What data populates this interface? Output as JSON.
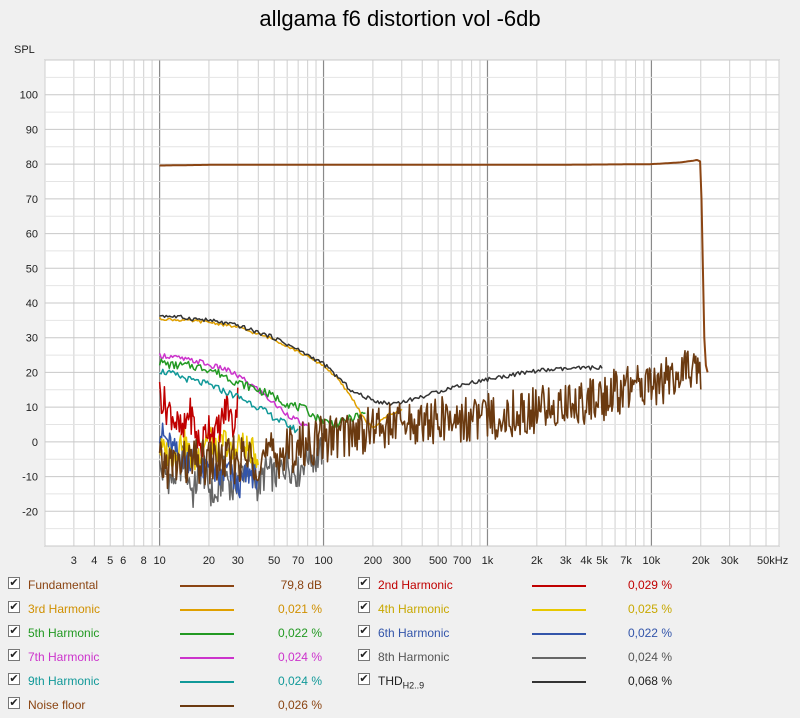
{
  "chart_data": {
    "type": "line",
    "title": "allgama f6 distortion vol -6db",
    "ylabel": "SPL",
    "xlabel": "",
    "x_scale": "log",
    "x_unit": "kHz",
    "xlim": [
      2,
      60000
    ],
    "ylim": [
      -30,
      110
    ],
    "y_ticks": [
      100,
      90,
      80,
      70,
      60,
      50,
      40,
      30,
      20,
      10,
      0,
      -10,
      -20
    ],
    "x_tick_labels": [
      {
        "value": 3,
        "label": "3"
      },
      {
        "value": 4,
        "label": "4"
      },
      {
        "value": 5,
        "label": "5"
      },
      {
        "value": 6,
        "label": "6"
      },
      {
        "value": 8,
        "label": "8"
      },
      {
        "value": 10,
        "label": "10"
      },
      {
        "value": 20,
        "label": "20"
      },
      {
        "value": 30,
        "label": "30"
      },
      {
        "value": 50,
        "label": "50"
      },
      {
        "value": 70,
        "label": "70"
      },
      {
        "value": 100,
        "label": "100"
      },
      {
        "value": 200,
        "label": "200"
      },
      {
        "value": 300,
        "label": "300"
      },
      {
        "value": 500,
        "label": "500"
      },
      {
        "value": 700,
        "label": "700"
      },
      {
        "value": 1000,
        "label": "1k"
      },
      {
        "value": 2000,
        "label": "2k"
      },
      {
        "value": 3000,
        "label": "3k"
      },
      {
        "value": 4000,
        "label": "4k"
      },
      {
        "value": 5000,
        "label": "5k"
      },
      {
        "value": 7000,
        "label": "7k"
      },
      {
        "value": 10000,
        "label": "10k"
      },
      {
        "value": 20000,
        "label": "20k"
      },
      {
        "value": 30000,
        "label": "30k"
      },
      {
        "value": 50000,
        "label": "50kHz"
      }
    ],
    "grid": true,
    "legend_placement": "bottom",
    "series": [
      {
        "name": "Fundamental",
        "color": "#8b4513",
        "legend_value": "79,8 dB",
        "x": [
          10,
          20,
          50,
          100,
          200,
          500,
          1000,
          2000,
          5000,
          10000,
          15000,
          18000,
          19000,
          19800,
          20200,
          20600,
          21000,
          21500,
          22000
        ],
        "y": [
          79.6,
          79.8,
          79.8,
          79.8,
          79.8,
          79.8,
          79.8,
          79.8,
          79.9,
          80.0,
          80.5,
          81.0,
          81.2,
          80.8,
          70,
          50,
          30,
          22,
          20
        ]
      },
      {
        "name": "2nd Harmonic",
        "color": "#c00000",
        "legend_value": "0,029 %",
        "x": [
          10,
          11,
          12,
          13,
          14,
          15,
          16,
          17,
          18,
          19,
          20,
          22,
          24,
          26,
          28,
          30
        ],
        "y": [
          14,
          10,
          8,
          4,
          2,
          9,
          6,
          1,
          -2,
          3,
          5,
          2,
          6,
          11,
          4,
          12
        ]
      },
      {
        "name": "3rd Harmonic",
        "color": "#e0a000",
        "legend_value": "0,021 %",
        "x": [
          10,
          20,
          30,
          50,
          70,
          100,
          120,
          150,
          180,
          200,
          250,
          300
        ],
        "y": [
          35.5,
          34.5,
          33,
          29.5,
          26,
          22,
          18.5,
          12.5,
          6,
          4,
          8,
          9
        ]
      },
      {
        "name": "4th Harmonic",
        "color": "#e8c800",
        "legend_value": "0,025 %",
        "x": [
          10,
          12,
          14,
          16,
          18,
          20,
          22,
          25,
          28,
          30,
          35,
          40
        ],
        "y": [
          -2,
          -4,
          1,
          -6,
          -2,
          3,
          -3,
          1,
          -5,
          0,
          -2,
          -4
        ]
      },
      {
        "name": "5th Harmonic",
        "color": "#229922",
        "legend_value": "0,022 %",
        "x": [
          10,
          12,
          15,
          20,
          25,
          30,
          35,
          40,
          50,
          60,
          70,
          80,
          90,
          100,
          120,
          150,
          180
        ],
        "y": [
          23,
          22,
          22,
          21,
          19,
          17,
          16,
          15,
          13,
          11,
          10,
          9,
          7,
          6,
          5,
          7,
          8
        ]
      },
      {
        "name": "6th Harmonic",
        "color": "#3355aa",
        "legend_value": "0,022 %",
        "x": [
          10,
          12,
          14,
          16,
          18,
          20,
          23,
          26,
          30,
          35,
          40
        ],
        "y": [
          3,
          -2,
          -6,
          -4,
          -9,
          -6,
          -11,
          -8,
          -13,
          -9,
          -10
        ]
      },
      {
        "name": "7th Harmonic",
        "color": "#cc33cc",
        "legend_value": "0,024 %",
        "x": [
          10,
          12,
          15,
          18,
          20,
          25,
          30,
          35,
          40,
          50,
          60,
          70,
          80
        ],
        "y": [
          25,
          24.5,
          23.5,
          23,
          22,
          21,
          19,
          17,
          15,
          11,
          8,
          6,
          4
        ]
      },
      {
        "name": "8th Harmonic",
        "color": "#666666",
        "legend_value": "0,024 %",
        "x": [
          10,
          12,
          14,
          16,
          18,
          20,
          22,
          25,
          28,
          30,
          35,
          40,
          45,
          50,
          60,
          70,
          80,
          90,
          100
        ],
        "y": [
          -8,
          -11,
          -5,
          -15,
          -7,
          -13,
          -17,
          -8,
          -14,
          -10,
          -6,
          -13,
          -8,
          -10,
          -6,
          -9,
          -3,
          -5,
          -2
        ]
      },
      {
        "name": "9th Harmonic",
        "color": "#119999",
        "legend_value": "0,024 %",
        "x": [
          10,
          12,
          15,
          18,
          20,
          25,
          30,
          35,
          40,
          50,
          60,
          70
        ],
        "y": [
          20.5,
          19.5,
          18,
          17,
          16.5,
          14.5,
          13,
          11.5,
          10,
          7,
          5,
          3
        ]
      },
      {
        "name": "THD H2..9",
        "color": "#333333",
        "legend_value": "0,068 %",
        "x": [
          10,
          20,
          30,
          50,
          70,
          100,
          120,
          150,
          200,
          250,
          300,
          400,
          500,
          700,
          1000,
          1500,
          2000,
          3000,
          5000
        ],
        "y": [
          36.5,
          35,
          33.5,
          30,
          26.5,
          22.5,
          19,
          14.5,
          12,
          11,
          11.5,
          13,
          14.5,
          16.5,
          18,
          19.5,
          20.5,
          21,
          21.5
        ]
      },
      {
        "name": "Noise floor",
        "color": "#6b3a10",
        "legend_value": "0,026 %",
        "x": [
          10,
          20,
          50,
          100,
          200,
          500,
          1000,
          2000,
          5000,
          10000,
          20000
        ],
        "y": [
          -7,
          -6,
          -4,
          1,
          4,
          6,
          7,
          9,
          13,
          17,
          21
        ]
      }
    ]
  },
  "legend": [
    {
      "label": "Fundamental",
      "value": "79,8 dB",
      "color": "#8b4513",
      "label_color": "#8b4513",
      "value_color": "#8b4513",
      "checked": "✔"
    },
    {
      "label": "2nd Harmonic",
      "value": "0,029 %",
      "color": "#c00000",
      "label_color": "#c00000",
      "value_color": "#c00000",
      "checked": "✔"
    },
    {
      "label": "3rd Harmonic",
      "value": "0,021 %",
      "color": "#e0a000",
      "label_color": "#d09000",
      "value_color": "#d09000",
      "checked": "✔"
    },
    {
      "label": "4th Harmonic",
      "value": "0,025 %",
      "color": "#e8c800",
      "label_color": "#c8a800",
      "value_color": "#c8a800",
      "checked": "✔"
    },
    {
      "label": "5th Harmonic",
      "value": "0,022 %",
      "color": "#229922",
      "label_color": "#229922",
      "value_color": "#229922",
      "checked": "✔"
    },
    {
      "label": "6th Harmonic",
      "value": "0,022 %",
      "color": "#3355aa",
      "label_color": "#3355aa",
      "value_color": "#3355aa",
      "checked": "✔"
    },
    {
      "label": "7th Harmonic",
      "value": "0,024 %",
      "color": "#cc33cc",
      "label_color": "#cc33cc",
      "value_color": "#cc33cc",
      "checked": "✔"
    },
    {
      "label": "8th Harmonic",
      "value": "0,024 %",
      "color": "#666666",
      "label_color": "#555555",
      "value_color": "#555555",
      "checked": "✔"
    },
    {
      "label": "9th Harmonic",
      "value": "0,024 %",
      "color": "#119999",
      "label_color": "#119999",
      "value_color": "#119999",
      "checked": "✔"
    },
    {
      "label": "THD",
      "label_sub": "H2..9",
      "value": "0,068 %",
      "color": "#333333",
      "label_color": "#222222",
      "value_color": "#222222",
      "checked": "✔"
    },
    {
      "label": "Noise floor",
      "value": "0,026 %",
      "color": "#6b3a10",
      "label_color": "#8b4513",
      "value_color": "#8b4513",
      "checked": "✔"
    }
  ]
}
